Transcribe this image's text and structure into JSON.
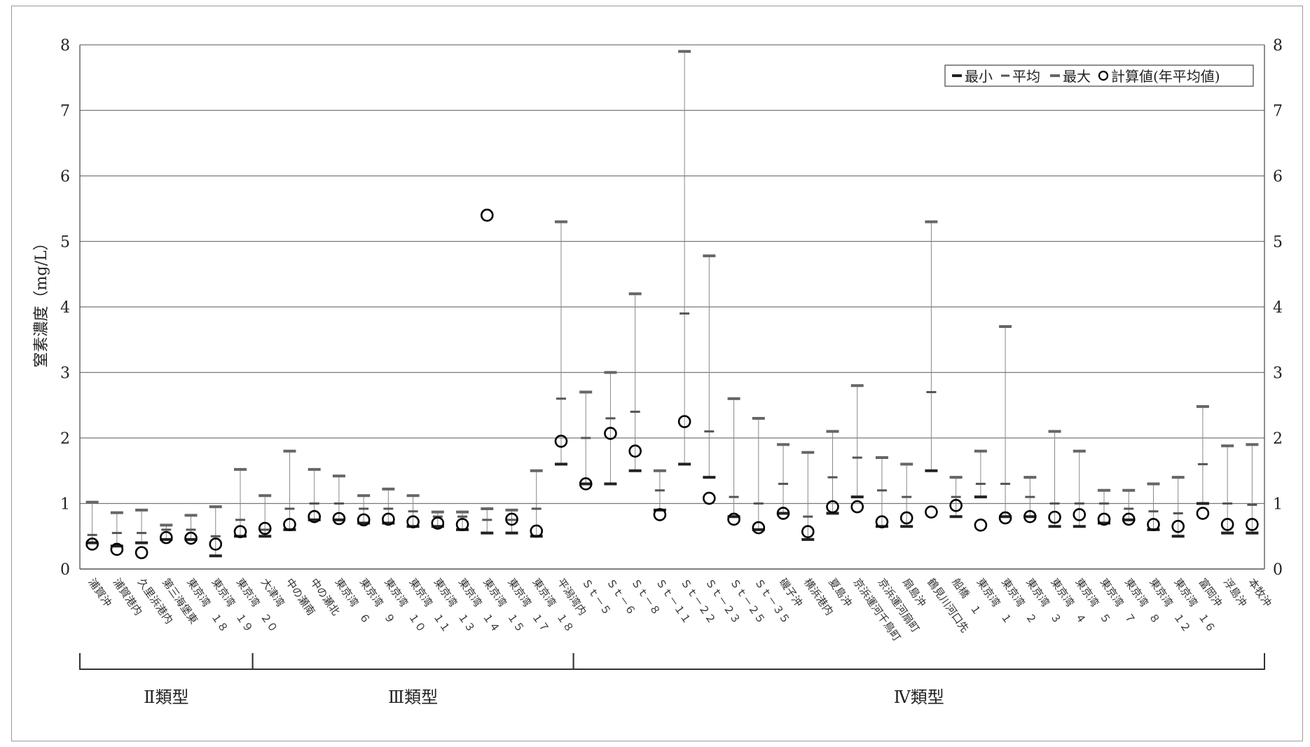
{
  "chart_data": {
    "type": "scatter",
    "ylabel": "窒素濃度（mg/L）",
    "ylim": [
      0,
      8
    ],
    "yticks": [
      0,
      1,
      2,
      3,
      4,
      5,
      6,
      7,
      8
    ],
    "grid": "horizontal",
    "legend_position": "top-right",
    "legend": [
      "最小",
      "平均",
      "最大",
      "計算値(年平均値)"
    ],
    "categories": [
      "浦賀沖",
      "浦賀港内",
      "久里浜港内",
      "第三海堡東",
      "東京湾　１８",
      "東京湾　１９",
      "東京湾　２０",
      "大津湾",
      "中の瀬南",
      "中の瀬北",
      "東京湾　６",
      "東京湾　９",
      "東京湾　１０",
      "東京湾　１１",
      "東京湾　１３",
      "東京湾　１４",
      "東京湾　１５",
      "東京湾　１７",
      "東京湾　１８",
      "平潟湾内",
      "Ｓｔ－５",
      "Ｓｔ－６",
      "Ｓｔ－８",
      "Ｓｔ－１１",
      "Ｓｔ－２２",
      "Ｓｔ－２３",
      "Ｓｔ－２５",
      "Ｓｔ－３５",
      "磯子沖",
      "横浜港内",
      "夏島沖",
      "京浜運河千鳥町",
      "京浜運河扇町",
      "扇島沖",
      "鶴見川河口先",
      "船橋　１",
      "東京湾　１",
      "東京湾　２",
      "東京湾　３",
      "東京湾　４",
      "東京湾　５",
      "東京湾　７",
      "東京湾　８",
      "東京湾　１２",
      "東京湾　１６",
      "富岡沖",
      "浮島沖",
      "本牧沖"
    ],
    "series": [
      {
        "name": "最小",
        "color": "#222222",
        "values": [
          0.4,
          0.35,
          0.4,
          0.45,
          0.45,
          0.2,
          0.5,
          0.5,
          0.6,
          0.75,
          0.75,
          0.7,
          0.7,
          0.65,
          0.65,
          0.6,
          0.55,
          0.55,
          0.5,
          1.6,
          1.3,
          1.3,
          1.5,
          0.9,
          1.6,
          1.4,
          0.8,
          0.6,
          0.85,
          0.45,
          0.85,
          1.1,
          0.65,
          0.65,
          1.5,
          0.8,
          1.1,
          0.8,
          0.8,
          0.65,
          0.65,
          0.7,
          0.75,
          0.6,
          0.5,
          1.0,
          0.55,
          0.55
        ]
      },
      {
        "name": "平均",
        "color": "#555555",
        "values": [
          0.52,
          0.55,
          0.55,
          0.6,
          0.6,
          0.5,
          0.75,
          0.6,
          0.92,
          1.0,
          1.0,
          0.92,
          0.92,
          0.88,
          0.8,
          0.8,
          0.75,
          0.75,
          0.92,
          2.6,
          2.0,
          2.3,
          2.4,
          1.2,
          3.9,
          2.1,
          1.1,
          1.0,
          1.3,
          0.8,
          1.4,
          1.7,
          1.2,
          1.1,
          2.7,
          1.1,
          1.3,
          1.3,
          1.1,
          1.0,
          1.0,
          1.0,
          0.92,
          0.88,
          0.85,
          1.6,
          1.0,
          0.98
        ]
      },
      {
        "name": "最大",
        "color": "#666666",
        "values": [
          1.02,
          0.86,
          0.9,
          0.67,
          0.82,
          0.95,
          1.52,
          1.12,
          1.8,
          1.52,
          1.42,
          1.12,
          1.22,
          1.12,
          0.87,
          0.87,
          0.92,
          0.9,
          1.5,
          5.3,
          2.7,
          3.0,
          4.2,
          1.5,
          7.9,
          4.78,
          2.6,
          2.3,
          1.9,
          1.78,
          2.1,
          2.8,
          1.7,
          1.6,
          5.3,
          1.4,
          1.8,
          3.7,
          1.4,
          2.1,
          1.8,
          1.2,
          1.2,
          1.3,
          1.4,
          2.48,
          1.88,
          1.9
        ]
      },
      {
        "name": "計算値(年平均値)",
        "color": "#000000",
        "values": [
          0.38,
          0.3,
          0.25,
          0.48,
          0.47,
          0.38,
          0.57,
          0.62,
          0.68,
          0.8,
          0.77,
          0.75,
          0.76,
          0.72,
          0.7,
          0.68,
          5.4,
          0.76,
          0.58,
          1.95,
          1.3,
          2.07,
          1.8,
          0.83,
          2.25,
          1.08,
          0.76,
          0.63,
          0.85,
          0.57,
          0.95,
          0.95,
          0.72,
          0.78,
          0.87,
          0.97,
          0.67,
          0.78,
          0.8,
          0.79,
          0.83,
          0.76,
          0.76,
          0.68,
          0.65,
          0.85,
          0.68,
          0.68
        ]
      }
    ],
    "groups": [
      {
        "label": "Ⅱ類型",
        "start": 0,
        "end": 6
      },
      {
        "label": "Ⅲ類型",
        "start": 7,
        "end": 19
      },
      {
        "label": "Ⅳ類型",
        "start": 20,
        "end": 47
      }
    ]
  }
}
